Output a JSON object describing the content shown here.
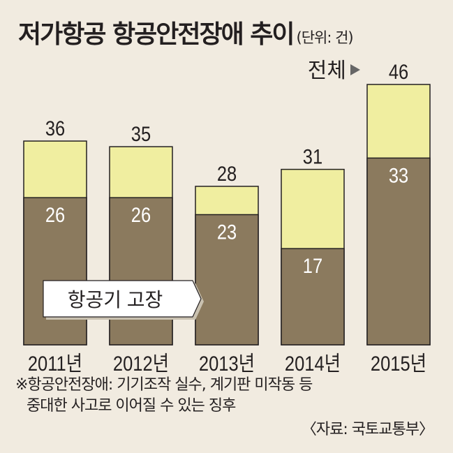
{
  "header": {
    "title": "저가항공 항공안전장애 추이",
    "unit": "(단위: 건)"
  },
  "legend": {
    "total_label": "전체",
    "lower_label": "항공기 고장"
  },
  "footnote": {
    "line1": "※항공안전장애: 기기조작 실수, 계기판 미작동 등",
    "line2": "중대한 사고로 이어질 수 있는 징후"
  },
  "source": "〈자료: 국토교통부〉",
  "colors": {
    "background": "#f1ebe0",
    "total": "#f0eea0",
    "aircraft_failure": "#8b7a5e",
    "outline": "#231f20"
  },
  "chart_data": {
    "type": "bar",
    "stacked": "overlay",
    "categories": [
      "2011년",
      "2012년",
      "2013년",
      "2014년",
      "2015년"
    ],
    "series": [
      {
        "name": "전체",
        "values": [
          36,
          35,
          28,
          31,
          46
        ]
      },
      {
        "name": "항공기 고장",
        "values": [
          26,
          26,
          23,
          17,
          33
        ]
      }
    ],
    "ylim": [
      0,
      46
    ],
    "grid": false
  }
}
